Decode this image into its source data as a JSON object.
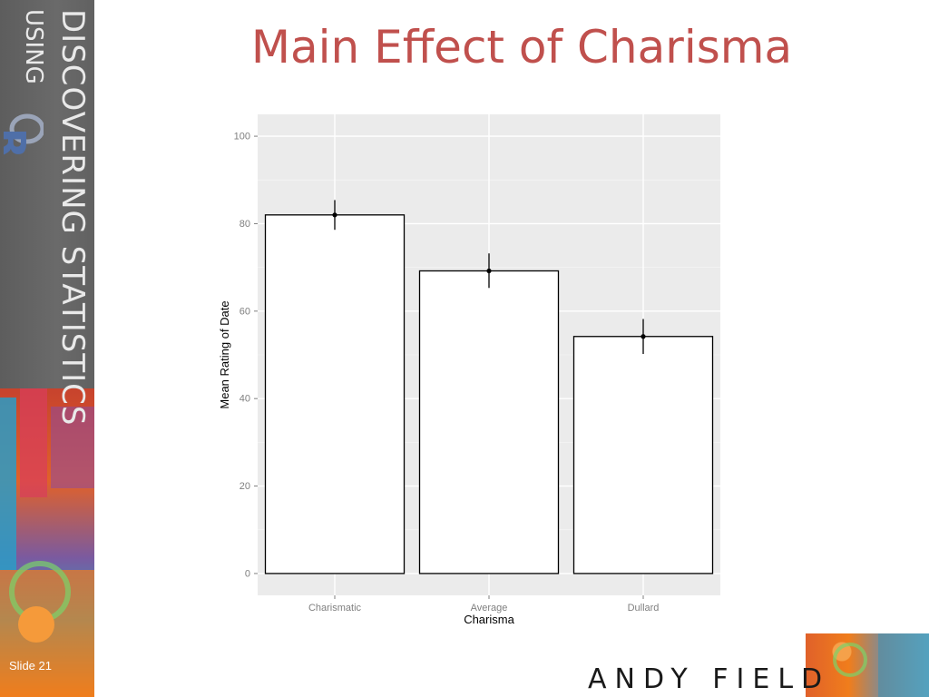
{
  "slide": {
    "title": "Main Effect of Charisma",
    "sidebar_title": "DISCOVERING STATISTICS",
    "sidebar_using": "USING",
    "slide_number": "Slide 21",
    "brand": "ANDY FIELD",
    "colors": {
      "title": "#c0504d",
      "panel": "#ebebeb",
      "grid": "#ffffff"
    }
  },
  "chart_data": {
    "type": "bar",
    "categories": [
      "Charismatic",
      "Average",
      "Dullard"
    ],
    "values": [
      82,
      69.2,
      54.2
    ],
    "error_low": [
      78.6,
      65.3,
      50.2
    ],
    "error_high": [
      85.4,
      73.2,
      58.2
    ],
    "xlabel": "Charisma",
    "ylabel": "Mean Rating of Date",
    "ylim": [
      -5,
      105
    ],
    "yticks": [
      0,
      20,
      40,
      60,
      80,
      100
    ],
    "grid": true
  }
}
